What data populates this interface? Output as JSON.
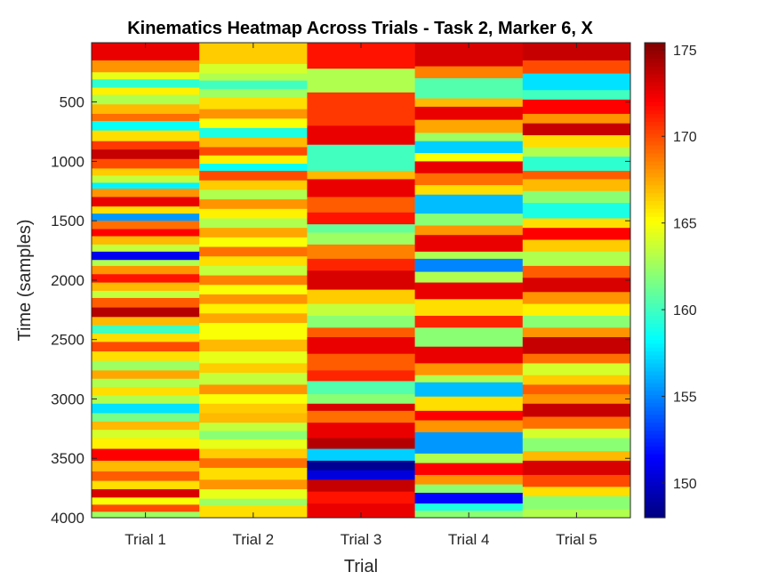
{
  "chart_data": {
    "type": "heatmap",
    "title": "Kinematics Heatmap Across Trials - Task 2, Marker 6, X",
    "xlabel": "Trial",
    "ylabel": "Time (samples)",
    "categories": [
      "Trial 1",
      "Trial 2",
      "Trial 3",
      "Trial 4",
      "Trial 5"
    ],
    "ylim": [
      1,
      4000
    ],
    "y_direction": "reverse",
    "yticks": [
      "500",
      "1000",
      "1500",
      "2000",
      "2500",
      "3000",
      "3500",
      "4000"
    ],
    "colormap": "jet",
    "clim": [
      148,
      175.4
    ],
    "colorbar_ticks": [
      "150",
      "155",
      "160",
      "165",
      "170",
      "175"
    ],
    "series": [
      {
        "name": "Trial 1",
        "segments": [
          {
            "end": 150,
            "value": 172.5
          },
          {
            "end": 250,
            "value": 168.0
          },
          {
            "end": 310,
            "value": 164.5
          },
          {
            "end": 380,
            "value": 159.5
          },
          {
            "end": 440,
            "value": 165.5
          },
          {
            "end": 520,
            "value": 163.0
          },
          {
            "end": 600,
            "value": 167.0
          },
          {
            "end": 660,
            "value": 169.0
          },
          {
            "end": 740,
            "value": 158.5
          },
          {
            "end": 830,
            "value": 166.0
          },
          {
            "end": 900,
            "value": 170.5
          },
          {
            "end": 980,
            "value": 173.5
          },
          {
            "end": 1060,
            "value": 170.0
          },
          {
            "end": 1120,
            "value": 166.5
          },
          {
            "end": 1180,
            "value": 163.5
          },
          {
            "end": 1230,
            "value": 158.0
          },
          {
            "end": 1300,
            "value": 168.0
          },
          {
            "end": 1380,
            "value": 172.5
          },
          {
            "end": 1440,
            "value": 166.0
          },
          {
            "end": 1500,
            "value": 155.5
          },
          {
            "end": 1570,
            "value": 169.0
          },
          {
            "end": 1630,
            "value": 172.0
          },
          {
            "end": 1700,
            "value": 167.0
          },
          {
            "end": 1760,
            "value": 163.5
          },
          {
            "end": 1830,
            "value": 151.0
          },
          {
            "end": 1880,
            "value": 163.0
          },
          {
            "end": 1950,
            "value": 168.0
          },
          {
            "end": 2020,
            "value": 171.5
          },
          {
            "end": 2090,
            "value": 167.0
          },
          {
            "end": 2150,
            "value": 163.5
          },
          {
            "end": 2230,
            "value": 169.5
          },
          {
            "end": 2310,
            "value": 174.0
          },
          {
            "end": 2380,
            "value": 167.0
          },
          {
            "end": 2450,
            "value": 160.0
          },
          {
            "end": 2520,
            "value": 166.0
          },
          {
            "end": 2600,
            "value": 170.0
          },
          {
            "end": 2680,
            "value": 166.0
          },
          {
            "end": 2760,
            "value": 162.5
          },
          {
            "end": 2830,
            "value": 167.5
          },
          {
            "end": 2900,
            "value": 163.0
          },
          {
            "end": 2970,
            "value": 166.0
          },
          {
            "end": 3040,
            "value": 163.0
          },
          {
            "end": 3120,
            "value": 157.5
          },
          {
            "end": 3190,
            "value": 161.5
          },
          {
            "end": 3260,
            "value": 167.0
          },
          {
            "end": 3330,
            "value": 164.0
          },
          {
            "end": 3420,
            "value": 165.5
          },
          {
            "end": 3520,
            "value": 172.0
          },
          {
            "end": 3610,
            "value": 167.0
          },
          {
            "end": 3690,
            "value": 169.5
          },
          {
            "end": 3760,
            "value": 166.0
          },
          {
            "end": 3830,
            "value": 173.0
          },
          {
            "end": 3890,
            "value": 165.0
          },
          {
            "end": 3950,
            "value": 170.0
          },
          {
            "end": 4000,
            "value": 162.5
          }
        ]
      },
      {
        "name": "Trial 2",
        "segments": [
          {
            "end": 180,
            "value": 166.5
          },
          {
            "end": 260,
            "value": 164.0
          },
          {
            "end": 320,
            "value": 163.0
          },
          {
            "end": 390,
            "value": 160.0
          },
          {
            "end": 460,
            "value": 162.5
          },
          {
            "end": 560,
            "value": 166.0
          },
          {
            "end": 640,
            "value": 168.0
          },
          {
            "end": 720,
            "value": 165.0
          },
          {
            "end": 800,
            "value": 159.0
          },
          {
            "end": 880,
            "value": 167.0
          },
          {
            "end": 950,
            "value": 170.0
          },
          {
            "end": 1020,
            "value": 165.5
          },
          {
            "end": 1080,
            "value": 158.5
          },
          {
            "end": 1160,
            "value": 170.0
          },
          {
            "end": 1240,
            "value": 166.5
          },
          {
            "end": 1320,
            "value": 163.0
          },
          {
            "end": 1400,
            "value": 168.0
          },
          {
            "end": 1480,
            "value": 165.5
          },
          {
            "end": 1560,
            "value": 163.0
          },
          {
            "end": 1640,
            "value": 167.5
          },
          {
            "end": 1720,
            "value": 165.0
          },
          {
            "end": 1800,
            "value": 169.0
          },
          {
            "end": 1880,
            "value": 166.0
          },
          {
            "end": 1960,
            "value": 163.5
          },
          {
            "end": 2040,
            "value": 168.5
          },
          {
            "end": 2120,
            "value": 165.0
          },
          {
            "end": 2200,
            "value": 168.0
          },
          {
            "end": 2280,
            "value": 165.5
          },
          {
            "end": 2360,
            "value": 167.5
          },
          {
            "end": 2500,
            "value": 165.0
          },
          {
            "end": 2600,
            "value": 167.0
          },
          {
            "end": 2700,
            "value": 164.5
          },
          {
            "end": 2780,
            "value": 166.5
          },
          {
            "end": 2880,
            "value": 163.5
          },
          {
            "end": 2960,
            "value": 168.0
          },
          {
            "end": 3040,
            "value": 165.0
          },
          {
            "end": 3120,
            "value": 166.5
          },
          {
            "end": 3200,
            "value": 167.0
          },
          {
            "end": 3270,
            "value": 163.5
          },
          {
            "end": 3340,
            "value": 162.0
          },
          {
            "end": 3420,
            "value": 164.5
          },
          {
            "end": 3500,
            "value": 166.5
          },
          {
            "end": 3580,
            "value": 169.0
          },
          {
            "end": 3680,
            "value": 166.0
          },
          {
            "end": 3760,
            "value": 168.0
          },
          {
            "end": 3840,
            "value": 164.5
          },
          {
            "end": 3900,
            "value": 162.5
          },
          {
            "end": 4000,
            "value": 166.0
          }
        ]
      },
      {
        "name": "Trial 3",
        "segments": [
          {
            "end": 220,
            "value": 171.5
          },
          {
            "end": 420,
            "value": 163.0
          },
          {
            "end": 700,
            "value": 170.5
          },
          {
            "end": 860,
            "value": 172.5
          },
          {
            "end": 1080,
            "value": 160.0
          },
          {
            "end": 1150,
            "value": 167.0
          },
          {
            "end": 1300,
            "value": 172.5
          },
          {
            "end": 1430,
            "value": 169.5
          },
          {
            "end": 1530,
            "value": 171.5
          },
          {
            "end": 1600,
            "value": 161.0
          },
          {
            "end": 1700,
            "value": 162.5
          },
          {
            "end": 1820,
            "value": 168.5
          },
          {
            "end": 1920,
            "value": 171.0
          },
          {
            "end": 2080,
            "value": 173.0
          },
          {
            "end": 2200,
            "value": 166.5
          },
          {
            "end": 2300,
            "value": 163.5
          },
          {
            "end": 2400,
            "value": 162.0
          },
          {
            "end": 2480,
            "value": 169.5
          },
          {
            "end": 2620,
            "value": 172.5
          },
          {
            "end": 2760,
            "value": 169.5
          },
          {
            "end": 2850,
            "value": 171.0
          },
          {
            "end": 2960,
            "value": 160.5
          },
          {
            "end": 3040,
            "value": 162.0
          },
          {
            "end": 3100,
            "value": 173.0
          },
          {
            "end": 3200,
            "value": 169.0
          },
          {
            "end": 3330,
            "value": 172.5
          },
          {
            "end": 3420,
            "value": 174.0
          },
          {
            "end": 3520,
            "value": 157.0
          },
          {
            "end": 3600,
            "value": 148.5
          },
          {
            "end": 3680,
            "value": 150.5
          },
          {
            "end": 3780,
            "value": 173.5
          },
          {
            "end": 3880,
            "value": 171.5
          },
          {
            "end": 4000,
            "value": 172.5
          }
        ]
      },
      {
        "name": "Trial 4",
        "segments": [
          {
            "end": 200,
            "value": 173.0
          },
          {
            "end": 300,
            "value": 168.5
          },
          {
            "end": 470,
            "value": 160.5
          },
          {
            "end": 540,
            "value": 167.0
          },
          {
            "end": 650,
            "value": 172.5
          },
          {
            "end": 760,
            "value": 167.5
          },
          {
            "end": 830,
            "value": 162.5
          },
          {
            "end": 930,
            "value": 157.0
          },
          {
            "end": 1000,
            "value": 165.0
          },
          {
            "end": 1100,
            "value": 172.5
          },
          {
            "end": 1200,
            "value": 169.0
          },
          {
            "end": 1280,
            "value": 166.0
          },
          {
            "end": 1440,
            "value": 156.5
          },
          {
            "end": 1540,
            "value": 162.0
          },
          {
            "end": 1620,
            "value": 168.0
          },
          {
            "end": 1760,
            "value": 172.5
          },
          {
            "end": 1820,
            "value": 163.0
          },
          {
            "end": 1930,
            "value": 155.0
          },
          {
            "end": 2020,
            "value": 163.0
          },
          {
            "end": 2160,
            "value": 172.5
          },
          {
            "end": 2300,
            "value": 166.0
          },
          {
            "end": 2400,
            "value": 171.0
          },
          {
            "end": 2560,
            "value": 162.0
          },
          {
            "end": 2700,
            "value": 172.5
          },
          {
            "end": 2800,
            "value": 168.0
          },
          {
            "end": 2860,
            "value": 163.0
          },
          {
            "end": 2980,
            "value": 156.5
          },
          {
            "end": 3100,
            "value": 166.0
          },
          {
            "end": 3180,
            "value": 172.0
          },
          {
            "end": 3280,
            "value": 168.0
          },
          {
            "end": 3460,
            "value": 155.5
          },
          {
            "end": 3540,
            "value": 163.0
          },
          {
            "end": 3640,
            "value": 172.0
          },
          {
            "end": 3720,
            "value": 168.0
          },
          {
            "end": 3790,
            "value": 162.0
          },
          {
            "end": 3880,
            "value": 151.5
          },
          {
            "end": 3940,
            "value": 159.0
          },
          {
            "end": 4000,
            "value": 162.0
          }
        ]
      },
      {
        "name": "Trial 5",
        "segments": [
          {
            "end": 150,
            "value": 173.5
          },
          {
            "end": 260,
            "value": 170.0
          },
          {
            "end": 400,
            "value": 157.5
          },
          {
            "end": 480,
            "value": 160.0
          },
          {
            "end": 600,
            "value": 172.0
          },
          {
            "end": 680,
            "value": 168.0
          },
          {
            "end": 780,
            "value": 173.5
          },
          {
            "end": 880,
            "value": 166.0
          },
          {
            "end": 960,
            "value": 163.0
          },
          {
            "end": 1080,
            "value": 159.5
          },
          {
            "end": 1150,
            "value": 169.5
          },
          {
            "end": 1250,
            "value": 167.0
          },
          {
            "end": 1350,
            "value": 162.0
          },
          {
            "end": 1480,
            "value": 159.0
          },
          {
            "end": 1560,
            "value": 166.0
          },
          {
            "end": 1660,
            "value": 172.0
          },
          {
            "end": 1760,
            "value": 166.5
          },
          {
            "end": 1880,
            "value": 163.0
          },
          {
            "end": 1980,
            "value": 169.5
          },
          {
            "end": 2100,
            "value": 173.0
          },
          {
            "end": 2200,
            "value": 168.0
          },
          {
            "end": 2300,
            "value": 165.5
          },
          {
            "end": 2400,
            "value": 162.0
          },
          {
            "end": 2480,
            "value": 168.0
          },
          {
            "end": 2620,
            "value": 173.5
          },
          {
            "end": 2700,
            "value": 169.0
          },
          {
            "end": 2800,
            "value": 164.0
          },
          {
            "end": 2880,
            "value": 166.5
          },
          {
            "end": 2960,
            "value": 169.5
          },
          {
            "end": 3040,
            "value": 168.0
          },
          {
            "end": 3150,
            "value": 173.5
          },
          {
            "end": 3250,
            "value": 169.0
          },
          {
            "end": 3330,
            "value": 164.0
          },
          {
            "end": 3440,
            "value": 162.0
          },
          {
            "end": 3520,
            "value": 167.0
          },
          {
            "end": 3640,
            "value": 173.0
          },
          {
            "end": 3740,
            "value": 170.0
          },
          {
            "end": 3820,
            "value": 166.0
          },
          {
            "end": 3930,
            "value": 162.0
          },
          {
            "end": 4000,
            "value": 163.0
          }
        ]
      }
    ]
  }
}
